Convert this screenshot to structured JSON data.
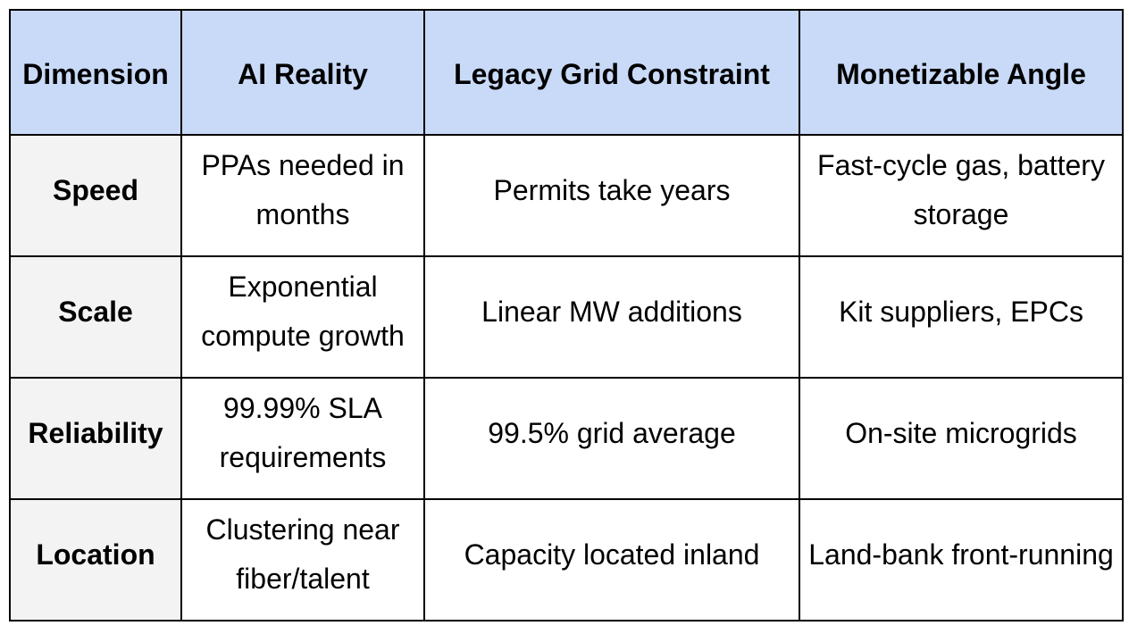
{
  "table": {
    "headers": [
      "Dimension",
      "AI Reality",
      "Legacy Grid Constraint",
      "Monetizable Angle"
    ],
    "rows": [
      {
        "dimension": "Speed",
        "ai_reality": "PPAs needed in months",
        "legacy_constraint": "Permits take years",
        "monetizable_angle": "Fast-cycle gas, battery storage"
      },
      {
        "dimension": "Scale",
        "ai_reality": "Exponential compute growth",
        "legacy_constraint": "Linear MW additions",
        "monetizable_angle": "Kit suppliers, EPCs"
      },
      {
        "dimension": "Reliability",
        "ai_reality": "99.99% SLA requirements",
        "legacy_constraint": "99.5% grid average",
        "monetizable_angle": "On-site microgrids"
      },
      {
        "dimension": "Location",
        "ai_reality": "Clustering near fiber/talent",
        "legacy_constraint": "Capacity located inland",
        "monetizable_angle": "Land-bank front-running"
      }
    ]
  },
  "colors": {
    "header_bg": "#c9daf8",
    "dimension_bg": "#f3f3f3",
    "border": "#000000"
  }
}
